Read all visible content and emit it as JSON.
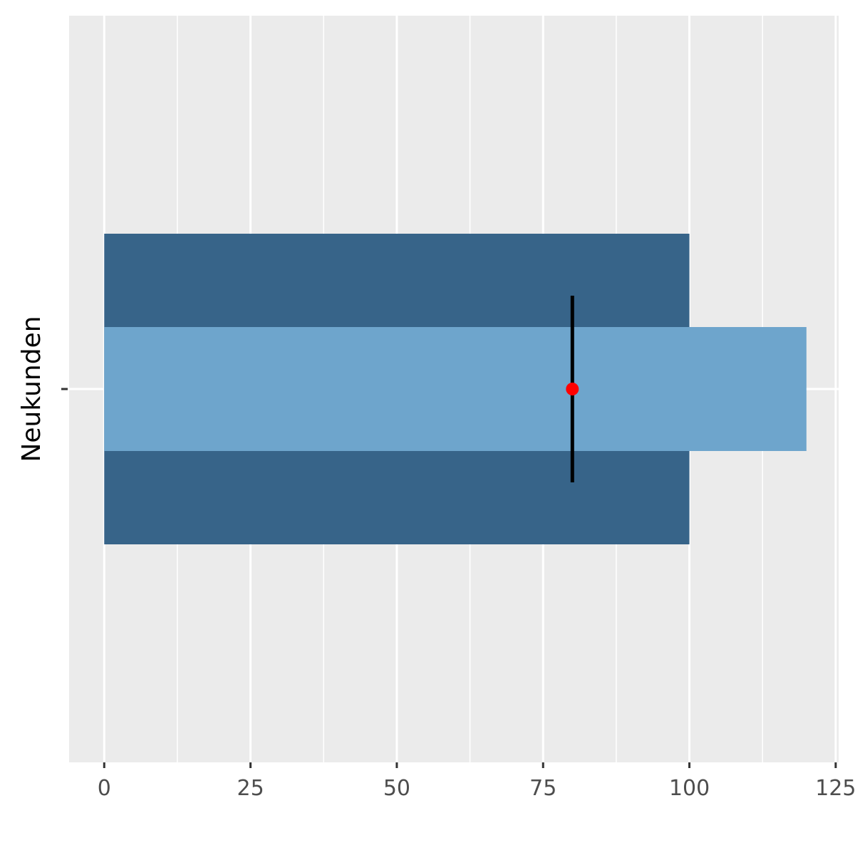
{
  "chart_data": {
    "type": "bar",
    "orientation": "horizontal",
    "chart_kind": "bullet",
    "title": "",
    "xlabel": "",
    "ylabel": "Neukunden",
    "category_tick_label": "",
    "xlim": [
      -6,
      125.5
    ],
    "x_ticks": [
      0,
      25,
      50,
      75,
      100,
      125
    ],
    "grid": true,
    "series": [
      {
        "role": "range",
        "value": 100,
        "color": "#376489"
      },
      {
        "role": "measure",
        "value": 120,
        "color": "#6ea5cc"
      },
      {
        "role": "target",
        "value": 80,
        "color": "#000000"
      },
      {
        "role": "point",
        "value": 80,
        "color": "#ff0000"
      }
    ],
    "colors": {
      "panel": "#ebebeb",
      "grid": "#ffffff",
      "axis_text": "#4d4d4d"
    }
  }
}
